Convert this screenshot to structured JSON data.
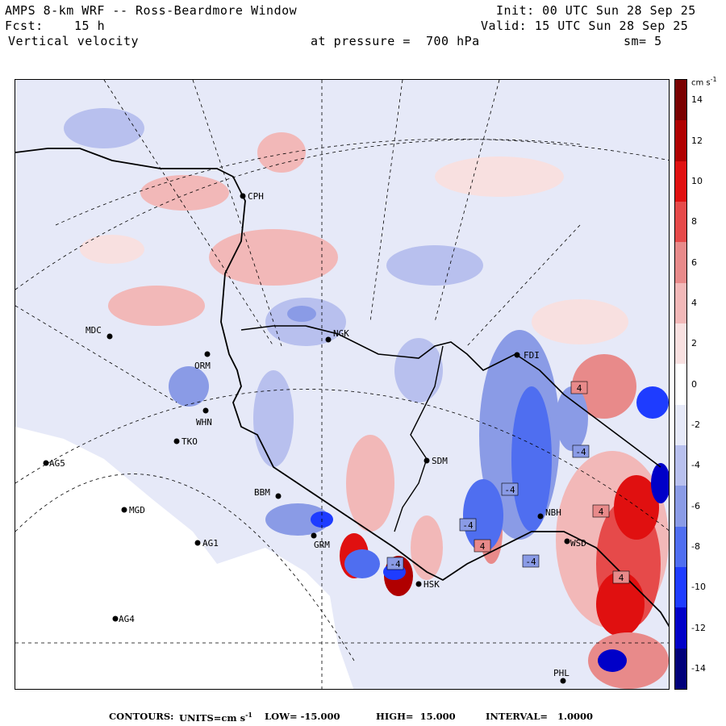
{
  "header": {
    "title": "AMPS 8-km WRF -- Ross-Beardmore Window",
    "forecast_label": "Fcst:",
    "forecast_hours": "15 h",
    "field": "Vertical velocity",
    "pressure_text": "at pressure =  700 hPa",
    "init_text": "Init: 00 UTC Sun 28 Sep 25",
    "valid_text": "Valid: 15 UTC Sun 28 Sep 25",
    "smoothing": "sm= 5"
  },
  "colorbar": {
    "unit": "cm s",
    "unit_exp": "-1",
    "ticks": [
      "14",
      "12",
      "10",
      "8",
      "6",
      "4",
      "2",
      "0",
      "-2",
      "-4",
      "-6",
      "-8",
      "-10",
      "-12",
      "-14"
    ],
    "range": [
      -15,
      15
    ],
    "colors": [
      "#00007a",
      "#0000c8",
      "#1e3cff",
      "#4f6ef0",
      "#8a9be6",
      "#b8c0ee",
      "#e6e9f8",
      "#ffffff",
      "#f8e0e0",
      "#f2b8b8",
      "#e88a8a",
      "#e64a4a",
      "#e01010",
      "#b00000",
      "#7a0000"
    ]
  },
  "stations": [
    {
      "id": "CPH",
      "label": "CPH"
    },
    {
      "id": "MDC",
      "label": "MDC"
    },
    {
      "id": "NGK",
      "label": "NGK"
    },
    {
      "id": "ORM",
      "label": "ORM"
    },
    {
      "id": "WHN",
      "label": "WHN"
    },
    {
      "id": "TKO",
      "label": "TKO"
    },
    {
      "id": "AG5",
      "label": "AG5"
    },
    {
      "id": "MGD",
      "label": "MGD"
    },
    {
      "id": "AG1",
      "label": "AG1"
    },
    {
      "id": "AG4",
      "label": "AG4"
    },
    {
      "id": "BBM",
      "label": "BBM"
    },
    {
      "id": "GRM",
      "label": "GRM"
    },
    {
      "id": "SDM",
      "label": "SDM"
    },
    {
      "id": "NBH",
      "label": "NBH"
    },
    {
      "id": "WSD",
      "label": "WSD"
    },
    {
      "id": "FDI",
      "label": "FDI"
    },
    {
      "id": "PHL",
      "label": "PHL"
    },
    {
      "id": "HSK",
      "label": "HSK"
    }
  ],
  "contour_labels": [
    "-4",
    "-4",
    "-4",
    "-4",
    "4",
    "4",
    "4",
    "-4",
    "4"
  ],
  "footer": {
    "contours_label": "CONTOURS:",
    "units_text": "UNITS=cm s",
    "units_exp": "-1",
    "low_text": "LOW= -15.000",
    "high_text": "HIGH=  15.000",
    "interval_text": "INTERVAL=   1.0000"
  }
}
